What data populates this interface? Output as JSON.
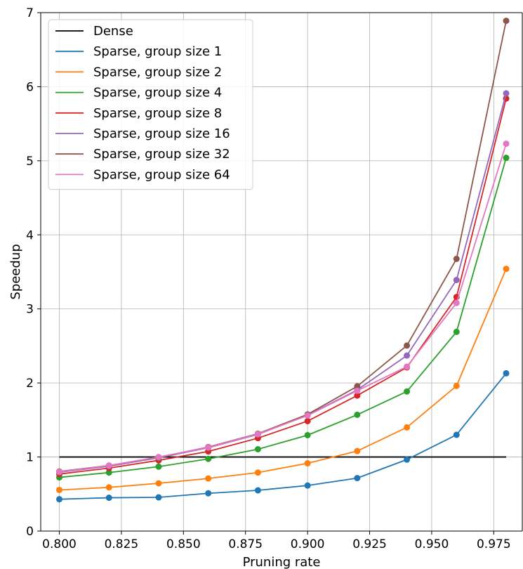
{
  "chart_data": {
    "type": "line",
    "title": "",
    "xlabel": "Pruning rate",
    "ylabel": "Speedup",
    "xlim": [
      0.7925,
      0.9865
    ],
    "ylim": [
      0,
      7
    ],
    "xticks": [
      0.8,
      0.825,
      0.85,
      0.875,
      0.9,
      0.925,
      0.95,
      0.975
    ],
    "xtick_labels": [
      "0.800",
      "0.825",
      "0.850",
      "0.875",
      "0.900",
      "0.925",
      "0.950",
      "0.975"
    ],
    "yticks": [
      0,
      1,
      2,
      3,
      4,
      5,
      6,
      7
    ],
    "ytick_labels": [
      "0",
      "1",
      "2",
      "3",
      "4",
      "5",
      "6",
      "7"
    ],
    "grid": true,
    "legend_position": "top-left",
    "x": [
      0.8,
      0.82,
      0.84,
      0.86,
      0.88,
      0.9,
      0.92,
      0.94,
      0.96,
      0.98
    ],
    "series": [
      {
        "name": "Dense",
        "color": "#000000",
        "markers": false,
        "x": [
          0.8,
          0.98
        ],
        "values": [
          1.0,
          1.0
        ]
      },
      {
        "name": "Sparse, group size 1",
        "color": "#1f77b4",
        "markers": true,
        "values": [
          0.43,
          0.45,
          0.455,
          0.51,
          0.55,
          0.615,
          0.715,
          0.965,
          1.3,
          2.13
        ]
      },
      {
        "name": "Sparse, group size 2",
        "color": "#ff7f0e",
        "markers": true,
        "values": [
          0.555,
          0.59,
          0.645,
          0.71,
          0.79,
          0.915,
          1.08,
          1.4,
          1.96,
          3.54
        ]
      },
      {
        "name": "Sparse, group size 4",
        "color": "#2ca02c",
        "markers": true,
        "values": [
          0.725,
          0.79,
          0.87,
          0.975,
          1.105,
          1.295,
          1.57,
          1.885,
          2.69,
          5.04
        ]
      },
      {
        "name": "Sparse, group size 8",
        "color": "#d62728",
        "markers": true,
        "values": [
          0.77,
          0.85,
          0.955,
          1.075,
          1.255,
          1.485,
          1.83,
          2.21,
          3.16,
          5.84
        ]
      },
      {
        "name": "Sparse, group size 16",
        "color": "#9467bd",
        "markers": true,
        "values": [
          0.795,
          0.875,
          0.99,
          1.125,
          1.305,
          1.565,
          1.905,
          2.37,
          3.39,
          5.91
        ]
      },
      {
        "name": "Sparse, group size 32",
        "color": "#8c564b",
        "markers": true,
        "values": [
          0.805,
          0.885,
          0.995,
          1.135,
          1.315,
          1.575,
          1.955,
          2.505,
          3.675,
          6.89
        ]
      },
      {
        "name": "Sparse, group size 64",
        "color": "#e377c2",
        "markers": true,
        "values": [
          0.8,
          0.885,
          1.0,
          1.13,
          1.31,
          1.56,
          1.895,
          2.22,
          3.08,
          5.23
        ]
      }
    ]
  }
}
